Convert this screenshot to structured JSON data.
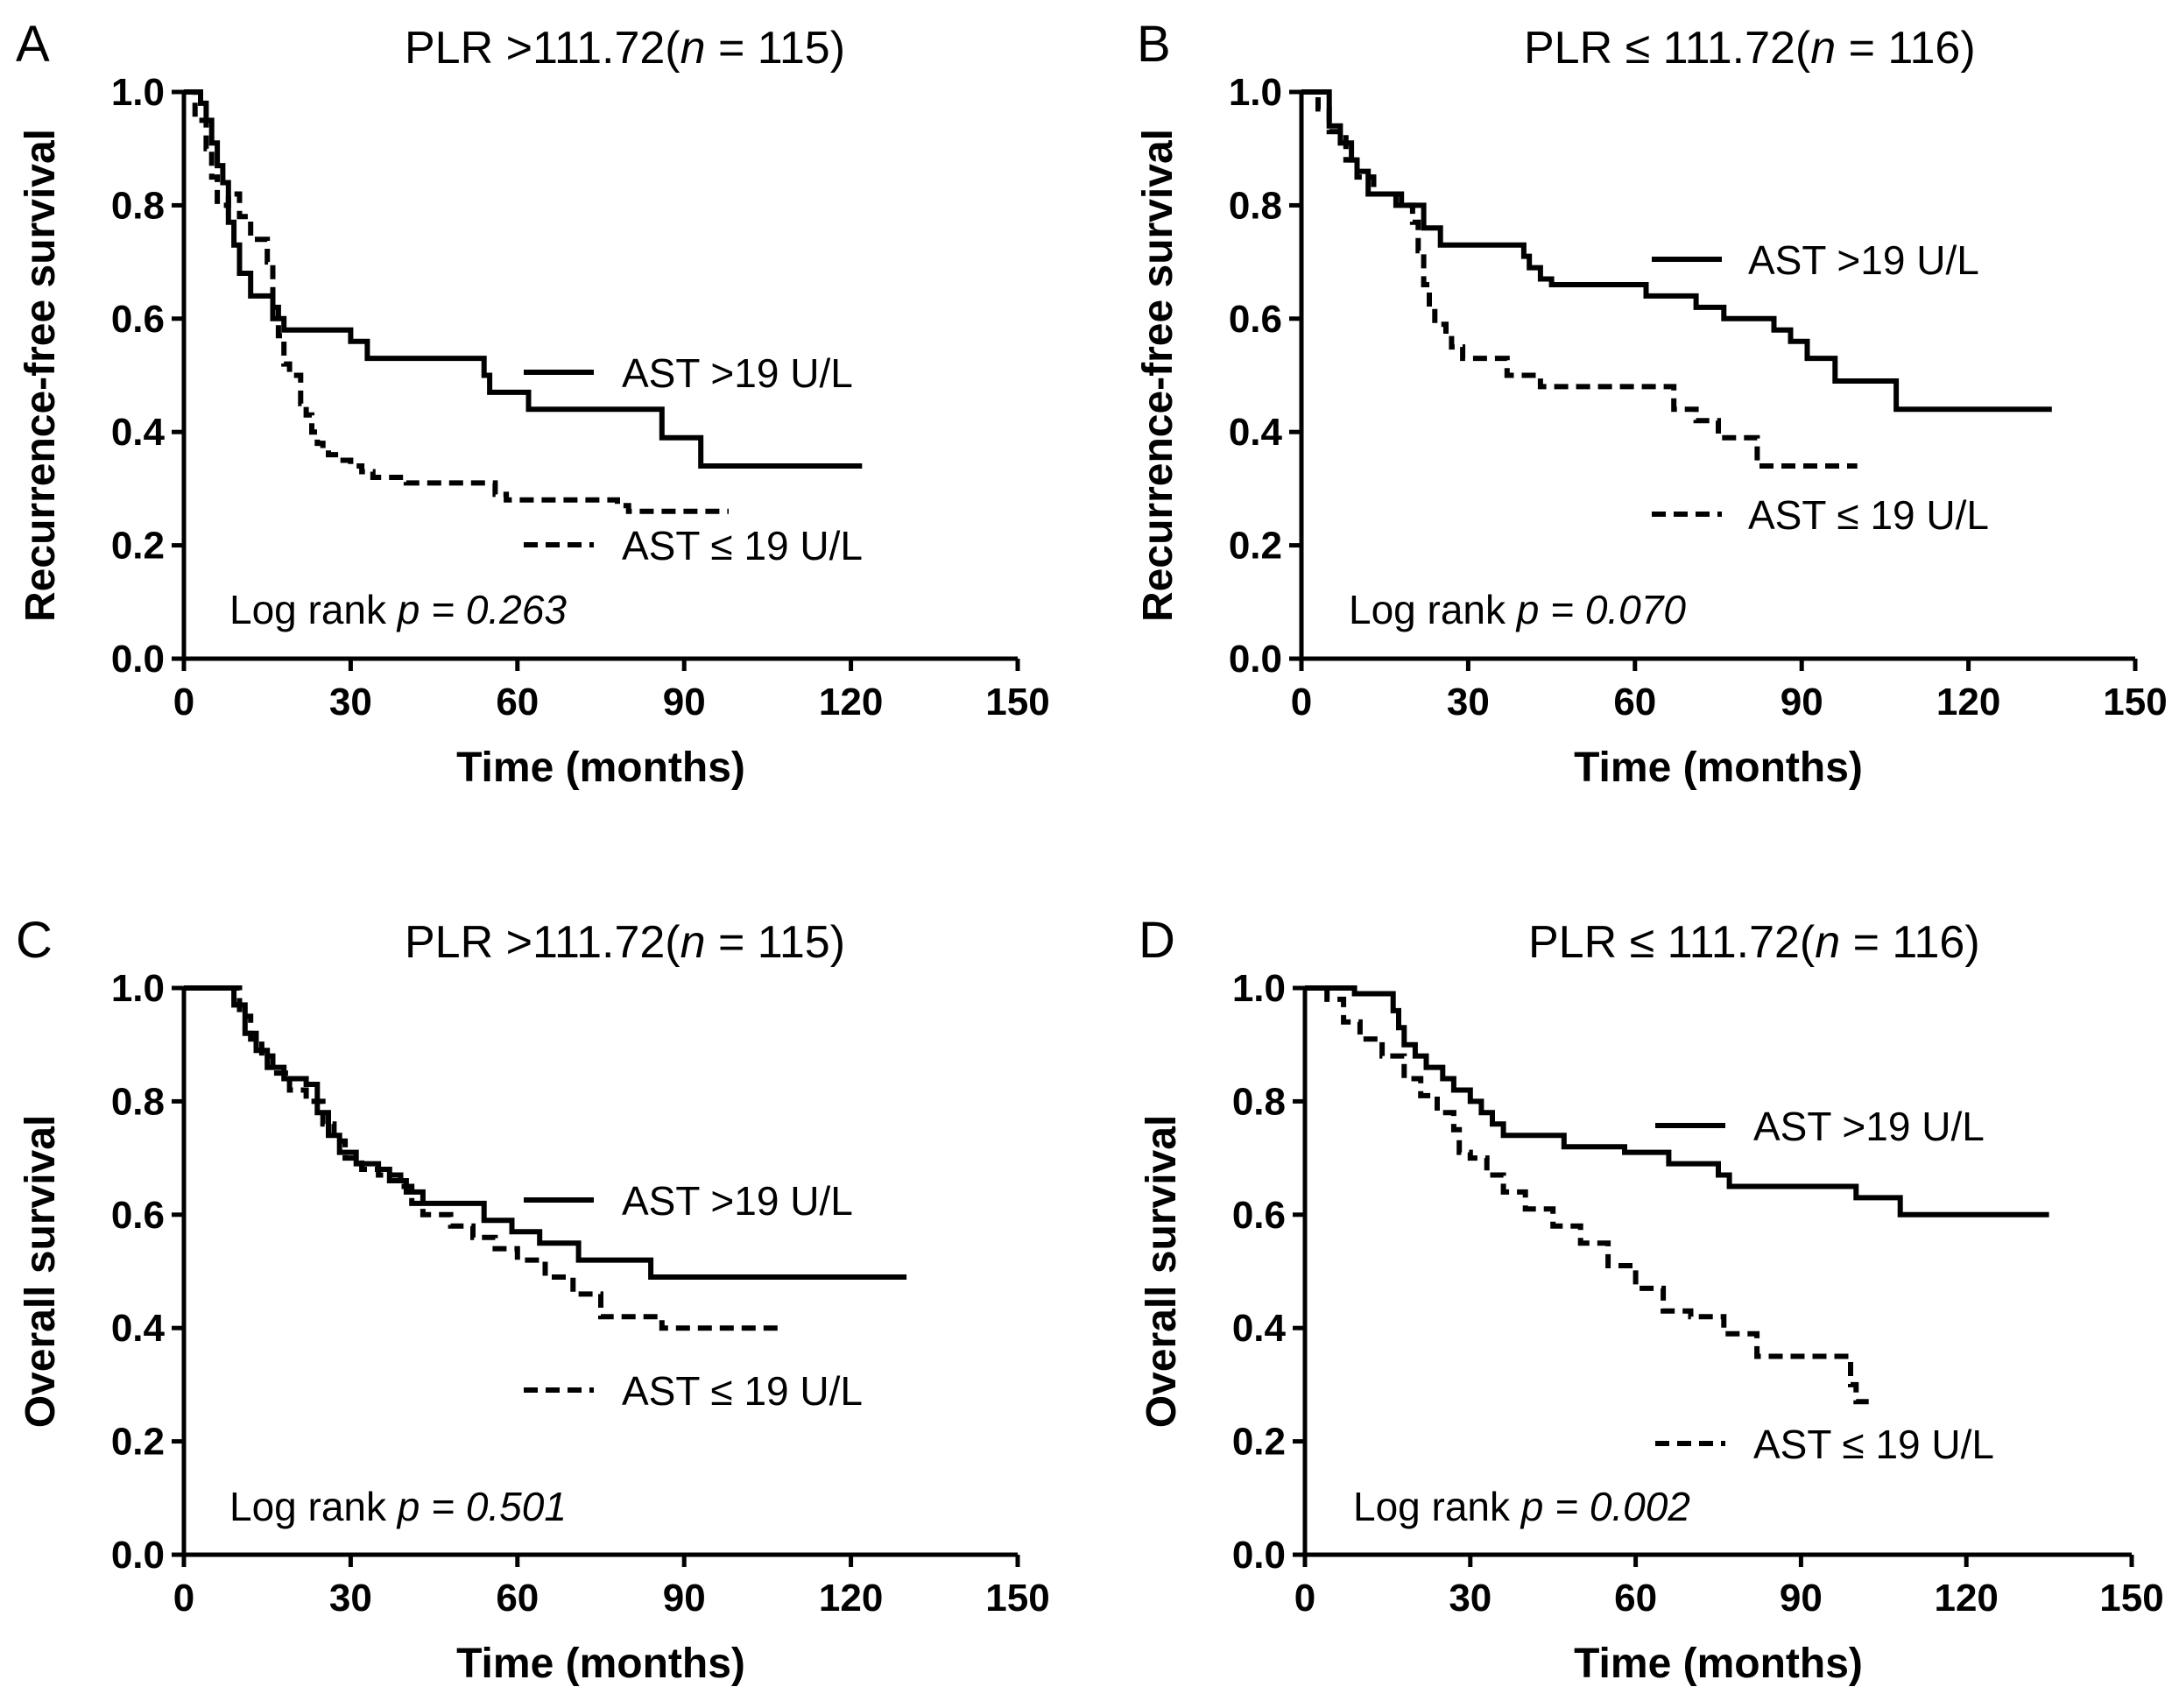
{
  "figure": {
    "background": "#ffffff",
    "line_color": "#000000"
  },
  "chart_data": [
    {
      "type": "line",
      "panel": "A",
      "title_main": "PLR",
      "title_cond": " >111.72(",
      "title_n": "n",
      "title_rest": " = 115)",
      "xlabel": "Time (months)",
      "ylabel": "Recurrence-free survival",
      "xlim": [
        0,
        150
      ],
      "ylim": [
        0,
        1.0
      ],
      "xticks": [
        0,
        30,
        60,
        90,
        120,
        150
      ],
      "yticks": [
        "0.0",
        "0.2",
        "0.4",
        "0.6",
        "0.8",
        "1.0"
      ],
      "pvalue_prefix": "Log rank ",
      "pvalue_p": "p",
      "pvalue_value": " = 0.263",
      "series": [
        {
          "name": "AST >19 U/L",
          "style": "solid",
          "x": [
            0,
            3,
            4,
            5,
            6,
            7,
            8,
            9,
            10,
            12,
            14,
            16,
            18,
            30,
            33,
            35,
            54,
            55,
            56,
            62,
            86,
            93,
            122
          ],
          "y": [
            1.0,
            0.98,
            0.95,
            0.91,
            0.87,
            0.84,
            0.77,
            0.73,
            0.68,
            0.64,
            0.64,
            0.6,
            0.58,
            0.56,
            0.53,
            0.53,
            0.5,
            0.47,
            0.47,
            0.44,
            0.39,
            0.34,
            0.34
          ]
        },
        {
          "name": "AST ≤ 19 U/L",
          "style": "dashed",
          "x": [
            0,
            2,
            4,
            5,
            6,
            8,
            10,
            12,
            15,
            16,
            17,
            18,
            19,
            21,
            22,
            23,
            24,
            25,
            26,
            28,
            30,
            32,
            34,
            40,
            56,
            58,
            78,
            80,
            98
          ],
          "y": [
            1.0,
            0.95,
            0.9,
            0.85,
            0.8,
            0.82,
            0.78,
            0.74,
            0.7,
            0.62,
            0.57,
            0.52,
            0.5,
            0.45,
            0.43,
            0.4,
            0.38,
            0.37,
            0.36,
            0.35,
            0.34,
            0.33,
            0.32,
            0.31,
            0.29,
            0.28,
            0.27,
            0.26,
            0.26
          ]
        }
      ]
    },
    {
      "type": "line",
      "panel": "B",
      "title_main": "PLR",
      "title_cond": " ≤ 111.72(",
      "title_n": "n",
      "title_rest": " = 116)",
      "xlabel": "Time (months)",
      "ylabel": "Recurrence-free survival",
      "xlim": [
        0,
        150
      ],
      "ylim": [
        0,
        1.0
      ],
      "xticks": [
        0,
        30,
        60,
        90,
        120,
        150
      ],
      "yticks": [
        "0.0",
        "0.2",
        "0.4",
        "0.6",
        "0.8",
        "1.0"
      ],
      "pvalue_prefix": "Log rank ",
      "pvalue_p": "p",
      "pvalue_value": " = 0.070",
      "series": [
        {
          "name": "AST >19 U/L",
          "style": "solid",
          "x": [
            0,
            5,
            7,
            9,
            10,
            12,
            18,
            22,
            25,
            40,
            41,
            43,
            45,
            62,
            71,
            76,
            85,
            88,
            91,
            96,
            107,
            135
          ],
          "y": [
            1.0,
            0.94,
            0.91,
            0.88,
            0.86,
            0.82,
            0.8,
            0.76,
            0.73,
            0.71,
            0.69,
            0.67,
            0.66,
            0.64,
            0.62,
            0.6,
            0.58,
            0.56,
            0.53,
            0.49,
            0.44,
            0.44
          ]
        },
        {
          "name": "AST ≤ 19 U/L",
          "style": "dashed",
          "x": [
            0,
            3,
            5,
            8,
            10,
            13,
            17,
            20,
            21,
            22,
            23,
            24,
            26,
            27,
            29,
            37,
            43,
            67,
            71,
            75,
            82,
            100
          ],
          "y": [
            1.0,
            0.97,
            0.93,
            0.88,
            0.85,
            0.82,
            0.8,
            0.77,
            0.72,
            0.66,
            0.62,
            0.59,
            0.57,
            0.55,
            0.53,
            0.5,
            0.48,
            0.44,
            0.42,
            0.39,
            0.34,
            0.34
          ]
        }
      ]
    },
    {
      "type": "line",
      "panel": "C",
      "title_main": "PLR",
      "title_cond": " >111.72(",
      "title_n": "n",
      "title_rest": " = 115)",
      "xlabel": "Time (months)",
      "ylabel": "Overall survival",
      "xlim": [
        0,
        150
      ],
      "ylim": [
        0,
        1.0
      ],
      "xticks": [
        0,
        30,
        60,
        90,
        120,
        150
      ],
      "yticks": [
        "0.0",
        "0.2",
        "0.4",
        "0.6",
        "0.8",
        "1.0"
      ],
      "pvalue_prefix": "Log rank ",
      "pvalue_p": "p",
      "pvalue_value": " = 0.501",
      "series": [
        {
          "name": "AST >19 U/L",
          "style": "solid",
          "x": [
            0,
            9,
            11,
            13,
            15,
            18,
            22,
            24,
            26,
            28,
            31,
            35,
            37,
            40,
            43,
            47,
            54,
            59,
            64,
            71,
            84,
            130
          ],
          "y": [
            1.0,
            0.97,
            0.92,
            0.89,
            0.86,
            0.84,
            0.83,
            0.78,
            0.74,
            0.71,
            0.69,
            0.68,
            0.66,
            0.64,
            0.62,
            0.62,
            0.59,
            0.57,
            0.55,
            0.52,
            0.49,
            0.49
          ]
        },
        {
          "name": "AST ≤ 19 U/L",
          "style": "dashed",
          "x": [
            0,
            10,
            12,
            14,
            16,
            19,
            22,
            25,
            27,
            29,
            32,
            35,
            39,
            41,
            43,
            48,
            52,
            56,
            60,
            65,
            70,
            75,
            86,
            107
          ],
          "y": [
            1.0,
            0.95,
            0.91,
            0.88,
            0.85,
            0.82,
            0.8,
            0.76,
            0.73,
            0.7,
            0.68,
            0.67,
            0.65,
            0.62,
            0.6,
            0.58,
            0.56,
            0.54,
            0.52,
            0.49,
            0.46,
            0.42,
            0.4,
            0.4
          ]
        }
      ]
    },
    {
      "type": "line",
      "panel": "D",
      "title_main": "PLR",
      "title_cond": " ≤ 111.72(",
      "title_n": "n",
      "title_rest": " = 116)",
      "xlabel": "Time (months)",
      "ylabel": "Overall survival",
      "xlim": [
        0,
        150
      ],
      "ylim": [
        0,
        1.0
      ],
      "xticks": [
        0,
        30,
        60,
        90,
        120,
        150
      ],
      "yticks": [
        "0.0",
        "0.2",
        "0.4",
        "0.6",
        "0.8",
        "1.0"
      ],
      "pvalue_prefix": "Log rank ",
      "pvalue_p": "p",
      "pvalue_value": " = 0.002",
      "series": [
        {
          "name": "AST >19 U/L",
          "style": "solid",
          "x": [
            0,
            9,
            16,
            17,
            18,
            20,
            22,
            25,
            27,
            30,
            32,
            34,
            36,
            40,
            47,
            58,
            66,
            75,
            77,
            100,
            108,
            135
          ],
          "y": [
            1.0,
            0.99,
            0.96,
            0.93,
            0.9,
            0.88,
            0.86,
            0.84,
            0.82,
            0.8,
            0.78,
            0.76,
            0.74,
            0.74,
            0.72,
            0.71,
            0.69,
            0.67,
            0.65,
            0.63,
            0.6,
            0.6
          ]
        },
        {
          "name": "AST ≤ 19 U/L",
          "style": "dashed",
          "x": [
            0,
            4,
            7,
            10,
            14,
            18,
            21,
            24,
            27,
            28,
            30,
            33,
            36,
            40,
            45,
            50,
            55,
            60,
            65,
            70,
            76,
            82,
            99,
            100,
            103
          ],
          "y": [
            1.0,
            0.98,
            0.94,
            0.91,
            0.88,
            0.84,
            0.81,
            0.78,
            0.75,
            0.71,
            0.7,
            0.67,
            0.64,
            0.61,
            0.58,
            0.55,
            0.51,
            0.47,
            0.43,
            0.42,
            0.39,
            0.35,
            0.3,
            0.27,
            0.27
          ]
        }
      ]
    }
  ]
}
